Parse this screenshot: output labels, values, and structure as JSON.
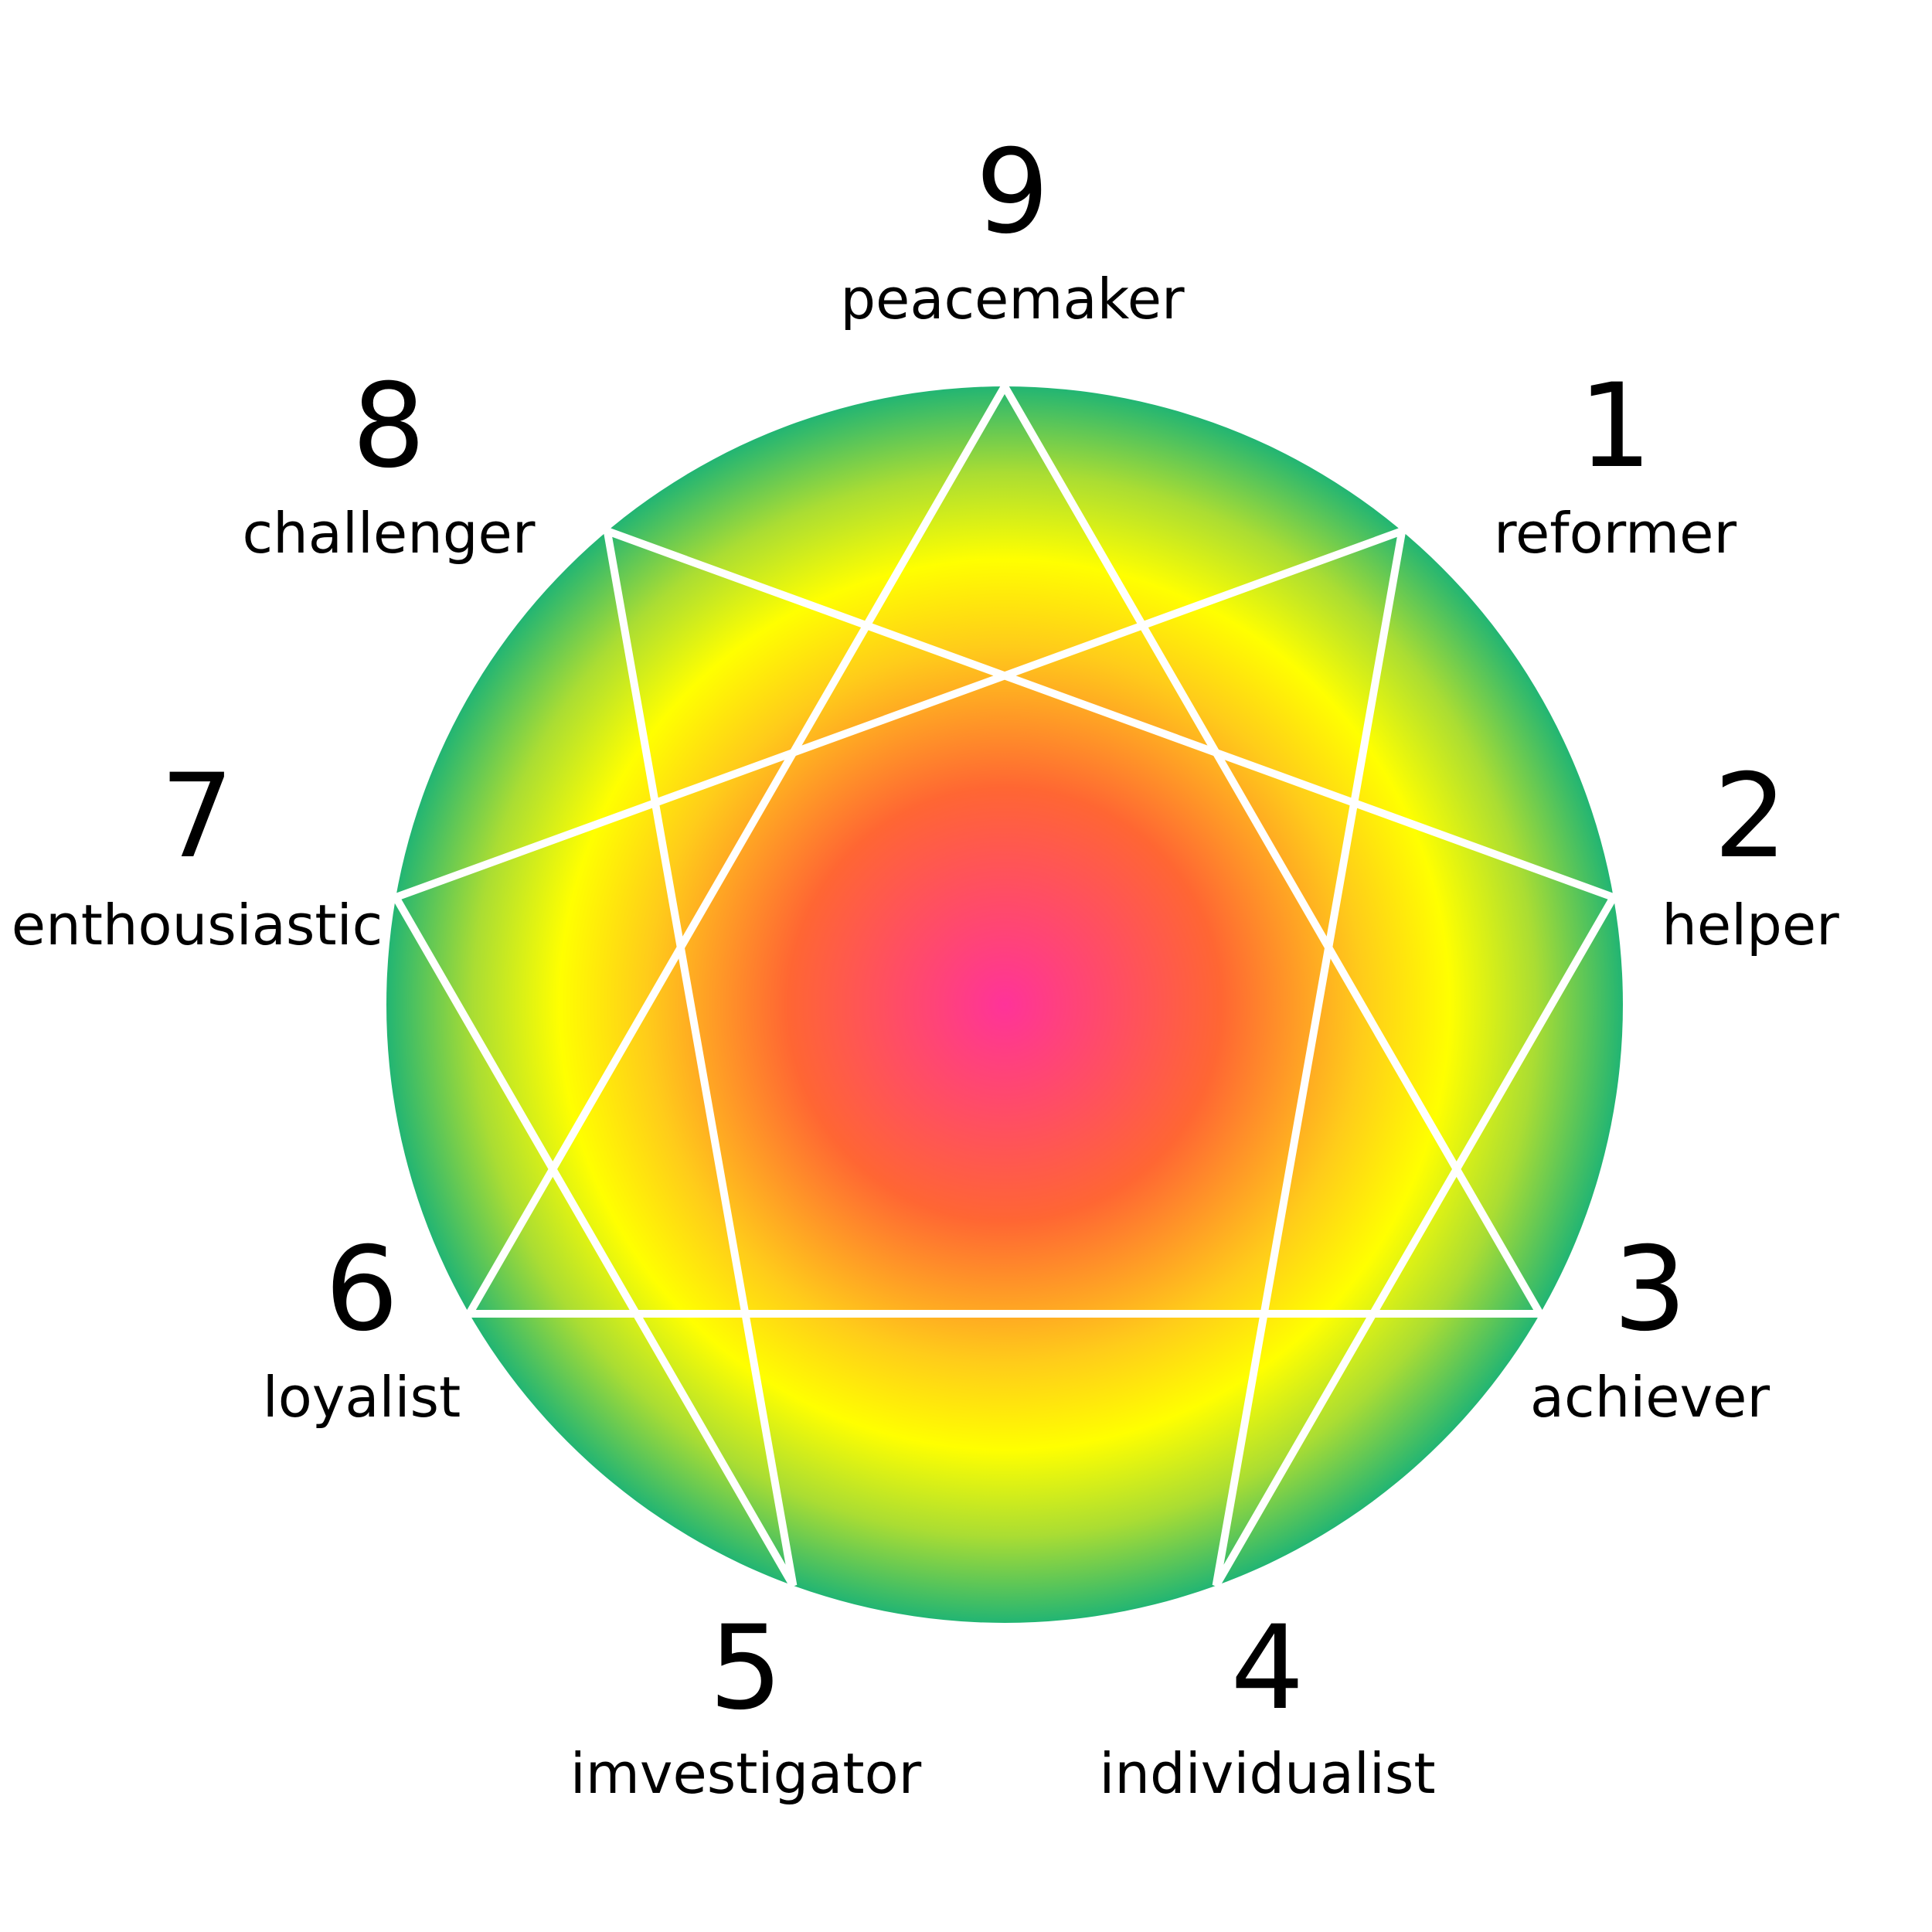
{
  "diagram": {
    "points": [
      {
        "number": "9",
        "name": "peacemaker"
      },
      {
        "number": "1",
        "name": "reformer"
      },
      {
        "number": "2",
        "name": "helper"
      },
      {
        "number": "3",
        "name": "achiever"
      },
      {
        "number": "4",
        "name": "individualist"
      },
      {
        "number": "5",
        "name": "imvestigator"
      },
      {
        "number": "6",
        "name": "loyalist"
      },
      {
        "number": "7",
        "name": "enthousiastic"
      },
      {
        "number": "8",
        "name": "challenger"
      }
    ],
    "colors": {
      "center": "#ff3399",
      "inner": "#ff6633",
      "middle": "#ffcc1a",
      "ring": "#ffff00",
      "outer": "#aadd33",
      "edge": "#22b573",
      "lines": "#ffffff"
    }
  }
}
